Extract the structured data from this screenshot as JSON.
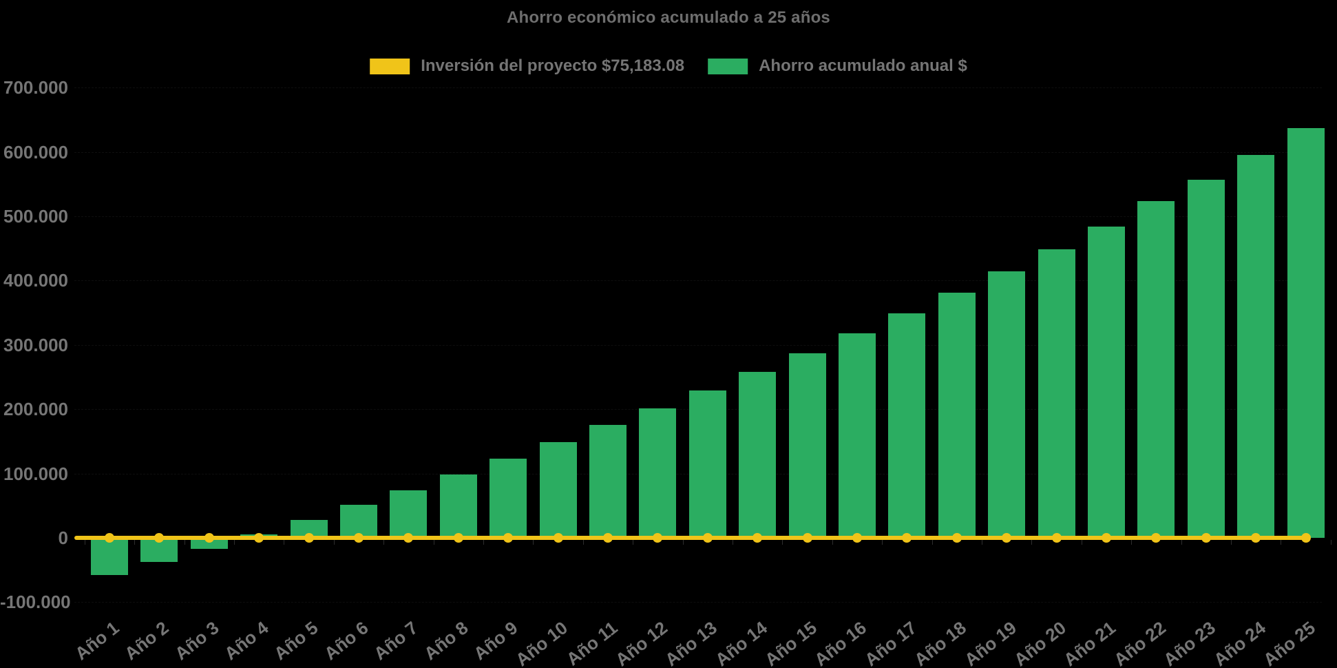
{
  "title": "Ahorro económico acumulado a 25 años",
  "legend": [
    {
      "label": "Inversión del proyecto $75,183.08",
      "color": "#f0c419"
    },
    {
      "label": "Ahorro acumulado anual $",
      "color": "#2bad61"
    }
  ],
  "colors": {
    "background": "#000000",
    "bar_green": "#2bad61",
    "line_yellow": "#f0c419",
    "text_gray": "#757575",
    "title_gray": "#6e6e6e"
  },
  "chart_data": {
    "type": "bar",
    "title": "Ahorro económico acumulado a 25 años",
    "xlabel": "",
    "ylabel": "",
    "legend_position": "top",
    "grid": false,
    "background": "#000000",
    "ylim": [
      -100000,
      700000
    ],
    "categories": [
      "Año 1",
      "Año 2",
      "Año 3",
      "Año 4",
      "Año 5",
      "Año 6",
      "Año 7",
      "Año 8",
      "Año 9",
      "Año 10",
      "Año 11",
      "Año 12",
      "Año 13",
      "Año 14",
      "Año 15",
      "Año 16",
      "Año 17",
      "Año 18",
      "Año 19",
      "Año 20",
      "Año 21",
      "Año 22",
      "Año 23",
      "Año 24",
      "Año 25"
    ],
    "series": [
      {
        "name": "Ahorro acumulado anual $",
        "type": "bar",
        "color": "#2bad61",
        "values": [
          -58000,
          -38000,
          -17000,
          5000,
          28000,
          51000,
          74000,
          98000,
          123000,
          149000,
          176000,
          201000,
          229000,
          258000,
          287000,
          318000,
          349000,
          381000,
          414000,
          449000,
          484000,
          524000,
          557000,
          595000,
          637000
        ]
      },
      {
        "name": "Inversión del proyecto $75,183.08",
        "type": "line",
        "color": "#f0c419",
        "marker": "circle",
        "values": [
          0,
          0,
          0,
          0,
          0,
          0,
          0,
          0,
          0,
          0,
          0,
          0,
          0,
          0,
          0,
          0,
          0,
          0,
          0,
          0,
          0,
          0,
          0,
          0,
          0
        ]
      }
    ],
    "y_axis": {
      "ticks": [
        {
          "value": 700000,
          "label": "700.000"
        },
        {
          "value": 600000,
          "label": "600.000"
        },
        {
          "value": 500000,
          "label": "500.000"
        },
        {
          "value": 400000,
          "label": "400.000"
        },
        {
          "value": 300000,
          "label": "300.000"
        },
        {
          "value": 200000,
          "label": "200.000"
        },
        {
          "value": 100000,
          "label": "100.000"
        },
        {
          "value": 0,
          "label": "0"
        },
        {
          "value": -100000,
          "label": "-100.000"
        }
      ]
    }
  }
}
